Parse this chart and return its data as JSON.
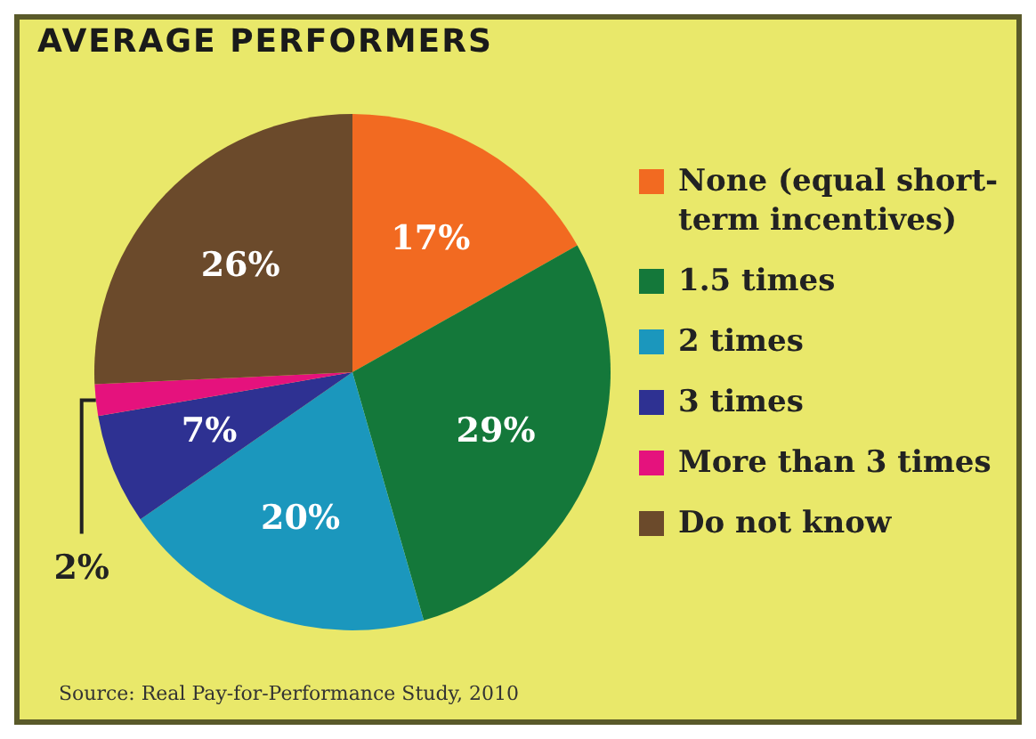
{
  "chart_data": {
    "type": "pie",
    "title": "AVERAGE PERFORMERS",
    "categories": [
      "None (equal short-term incentives)",
      "1.5 times",
      "2 times",
      "3 times",
      "More than 3 times",
      "Do not know"
    ],
    "values": [
      17,
      29,
      20,
      7,
      2,
      26
    ],
    "value_labels": [
      "17%",
      "29%",
      "20%",
      "7%",
      "2%",
      "26%"
    ],
    "colors": [
      "#f26a21",
      "#14783a",
      "#1b97bd",
      "#2e3192",
      "#e5127d",
      "#6b4a2b"
    ],
    "legend": "right",
    "annotations": [
      "Source: Real Pay-for-Performance Study, 2010"
    ]
  }
}
